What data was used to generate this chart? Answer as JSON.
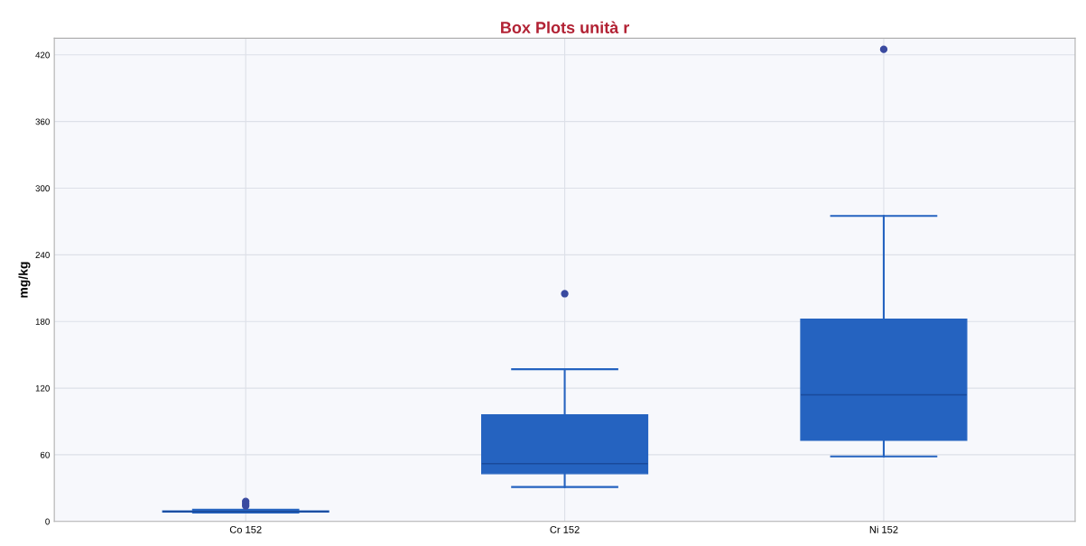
{
  "chart_data": {
    "type": "box",
    "title": "Box Plots unità r",
    "ylabel": "mg/kg",
    "categories": [
      "Co 152",
      "Cr 152",
      "Ni 152"
    ],
    "boxes": [
      {
        "low": 8,
        "q1": 8.5,
        "median": 9,
        "q3": 9.5,
        "high": 10.5,
        "outliers": [
          14,
          16,
          18
        ]
      },
      {
        "low": 31,
        "q1": 43,
        "median": 52,
        "q3": 96,
        "high": 137,
        "outliers": [
          205
        ]
      },
      {
        "low": 58.5,
        "q1": 73,
        "median": 114,
        "q3": 182,
        "high": 275,
        "outliers": [
          425
        ]
      }
    ],
    "color": "#2563c0",
    "ylim": [
      0,
      435
    ],
    "yticks": [
      0,
      60,
      120,
      180,
      240,
      300,
      360,
      420
    ],
    "grid": true
  }
}
